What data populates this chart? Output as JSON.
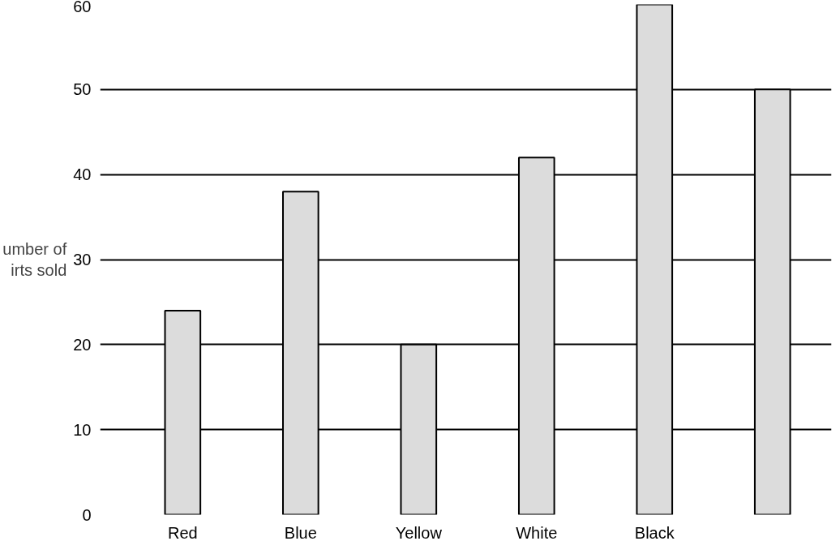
{
  "chart_data": {
    "type": "bar",
    "ylabel": "umber of\nirts sold",
    "categories": [
      "Red",
      "Blue",
      "Yellow",
      "White",
      "Black",
      null
    ],
    "values": [
      24,
      38,
      20,
      42,
      60,
      50
    ],
    "color": "#dcdcdc",
    "ylim": [
      0,
      60
    ],
    "yticks": [
      0,
      10,
      20,
      30,
      40,
      50,
      60
    ],
    "grid": "y"
  }
}
